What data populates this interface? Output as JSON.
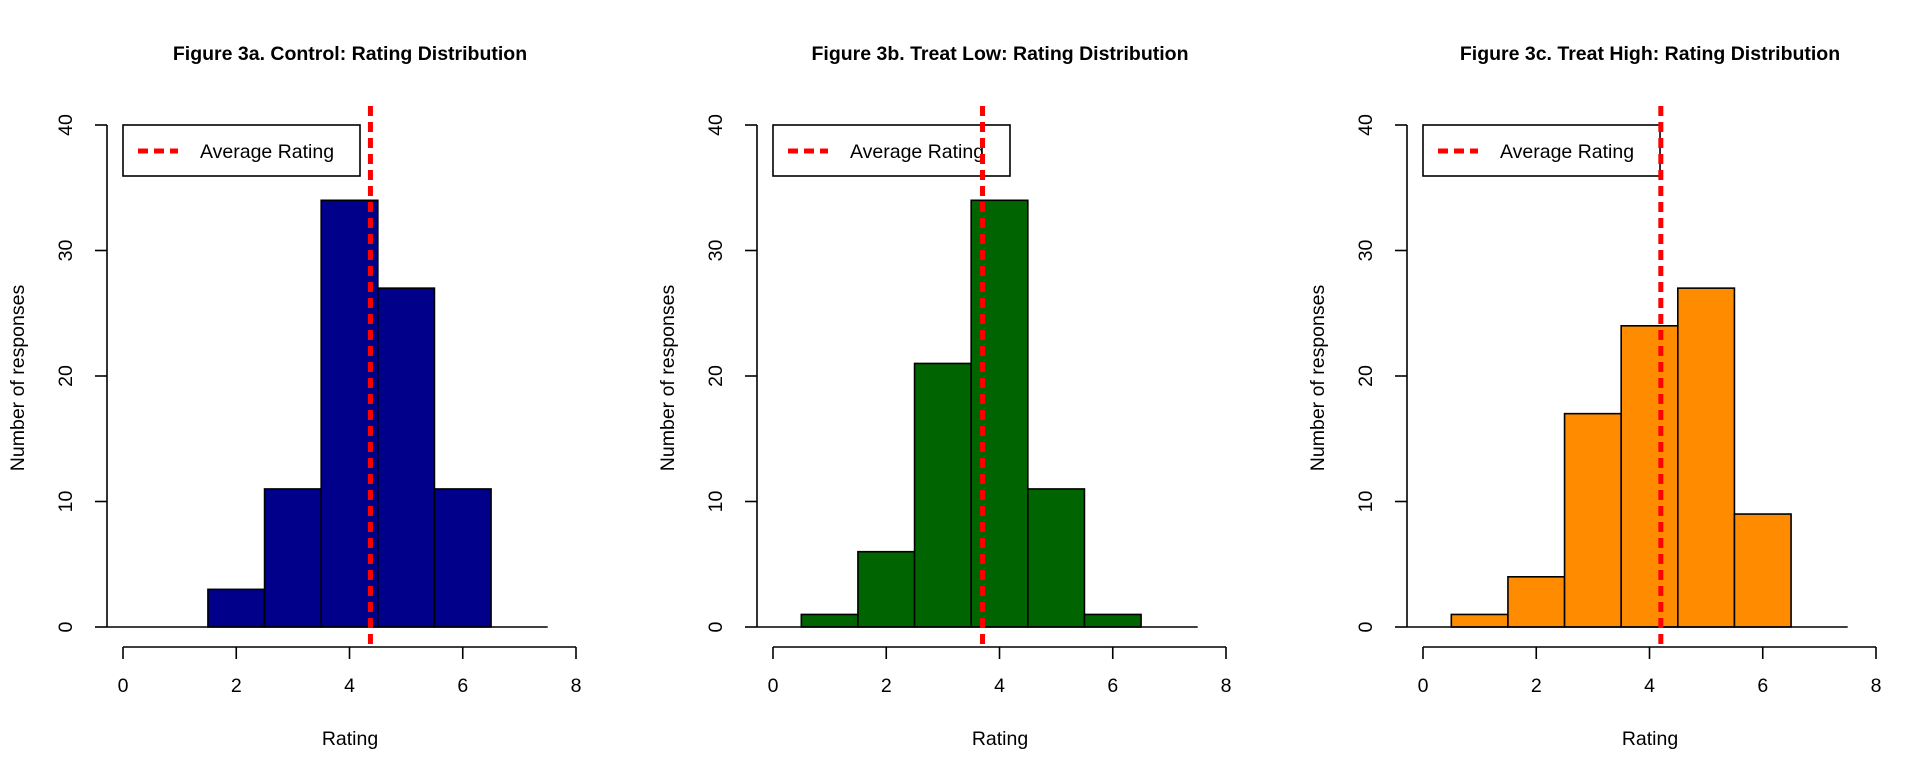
{
  "chart_data": [
    {
      "type": "bar",
      "title": "Figure 3a. Control: Rating Distribution",
      "xlabel": "Rating",
      "ylabel": "Number of responses",
      "xlim": [
        0,
        8
      ],
      "ylim": [
        0,
        40
      ],
      "xticks": [
        0,
        2,
        4,
        6,
        8
      ],
      "yticks": [
        0,
        10,
        20,
        30,
        40
      ],
      "bins": [
        {
          "from": 1.5,
          "to": 2.5,
          "count": 3
        },
        {
          "from": 2.5,
          "to": 3.5,
          "count": 11
        },
        {
          "from": 3.5,
          "to": 4.5,
          "count": 34
        },
        {
          "from": 4.5,
          "to": 5.5,
          "count": 27
        },
        {
          "from": 5.5,
          "to": 6.5,
          "count": 11
        }
      ],
      "bar_color": "#00008B",
      "average": 4.37,
      "average_color": "#FF0000",
      "legend": {
        "label": "Average Rating",
        "position": "top-left"
      }
    },
    {
      "type": "bar",
      "title": "Figure 3b. Treat Low: Rating Distribution",
      "xlabel": "Rating",
      "ylabel": "Number of responses",
      "xlim": [
        0,
        8
      ],
      "ylim": [
        0,
        40
      ],
      "xticks": [
        0,
        2,
        4,
        6,
        8
      ],
      "yticks": [
        0,
        10,
        20,
        30,
        40
      ],
      "bins": [
        {
          "from": 0.5,
          "to": 1.5,
          "count": 1
        },
        {
          "from": 1.5,
          "to": 2.5,
          "count": 6
        },
        {
          "from": 2.5,
          "to": 3.5,
          "count": 21
        },
        {
          "from": 3.5,
          "to": 4.5,
          "count": 34
        },
        {
          "from": 4.5,
          "to": 5.5,
          "count": 11
        },
        {
          "from": 5.5,
          "to": 6.5,
          "count": 1
        }
      ],
      "bar_color": "#006400",
      "average": 3.7,
      "average_color": "#FF0000",
      "legend": {
        "label": "Average Rating",
        "position": "top-left"
      }
    },
    {
      "type": "bar",
      "title": "Figure 3c. Treat High: Rating Distribution",
      "xlabel": "Rating",
      "ylabel": "Number of responses",
      "xlim": [
        0,
        8
      ],
      "ylim": [
        0,
        40
      ],
      "xticks": [
        0,
        2,
        4,
        6,
        8
      ],
      "yticks": [
        0,
        10,
        20,
        30,
        40
      ],
      "bins": [
        {
          "from": 0.5,
          "to": 1.5,
          "count": 1
        },
        {
          "from": 1.5,
          "to": 2.5,
          "count": 4
        },
        {
          "from": 2.5,
          "to": 3.5,
          "count": 17
        },
        {
          "from": 3.5,
          "to": 4.5,
          "count": 24
        },
        {
          "from": 4.5,
          "to": 5.5,
          "count": 27
        },
        {
          "from": 5.5,
          "to": 6.5,
          "count": 9
        }
      ],
      "bar_color": "#FF8C00",
      "average": 4.2,
      "average_color": "#FF0000",
      "legend": {
        "label": "Average Rating",
        "position": "top-left"
      }
    }
  ]
}
